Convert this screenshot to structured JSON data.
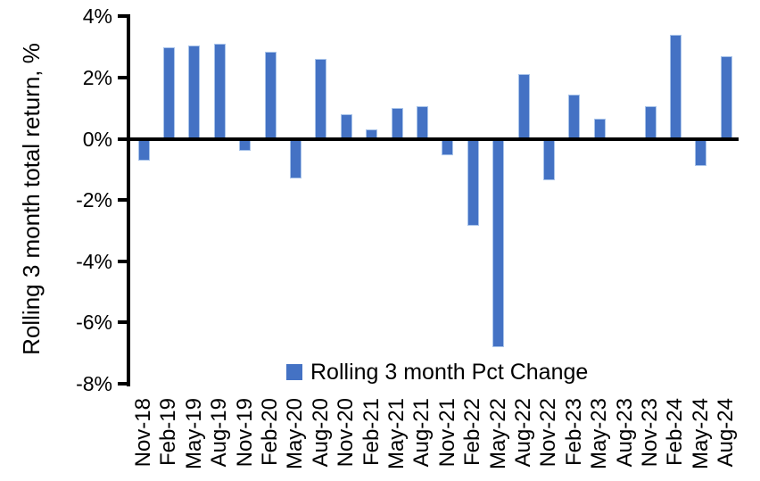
{
  "chart_data": {
    "type": "bar",
    "title": "",
    "xlabel": "",
    "ylabel": "Rolling 3 month total return, %",
    "legend_label": "Rolling 3 month Pct Change",
    "legend_position": "inside-bottom-center",
    "grid": false,
    "ylim": [
      -8,
      4
    ],
    "ytick_step": 2,
    "yticks": [
      4,
      2,
      0,
      -2,
      -4,
      -6,
      -8
    ],
    "ytick_labels": [
      "4%",
      "2%",
      "0%",
      "-2%",
      "-4%",
      "-6%",
      "-8%"
    ],
    "categories": [
      "Nov-18",
      "Feb-19",
      "May-19",
      "Aug-19",
      "Nov-19",
      "Feb-20",
      "May-20",
      "Aug-20",
      "Nov-20",
      "Feb-21",
      "May-21",
      "Aug-21",
      "Nov-21",
      "Feb-22",
      "May-22",
      "Aug-22",
      "Nov-22",
      "Feb-23",
      "May-23",
      "Aug-23",
      "Nov-23",
      "Feb-24",
      "May-24",
      "Aug-24"
    ],
    "series": [
      {
        "name": "Rolling 3 month Pct Change",
        "values": [
          -0.7,
          3.0,
          3.05,
          3.1,
          -0.4,
          2.85,
          -1.3,
          2.6,
          0.8,
          0.3,
          1.0,
          1.05,
          -0.55,
          -2.85,
          -6.8,
          2.1,
          -1.35,
          1.45,
          0.65,
          0.0,
          1.05,
          3.4,
          -0.9,
          2.7
        ]
      }
    ],
    "colors": {
      "bar_fill": "#4472C4",
      "bar_border": "#A9C4EA",
      "axis": "#000000",
      "text": "#000000",
      "background": "#FFFFFF"
    }
  }
}
